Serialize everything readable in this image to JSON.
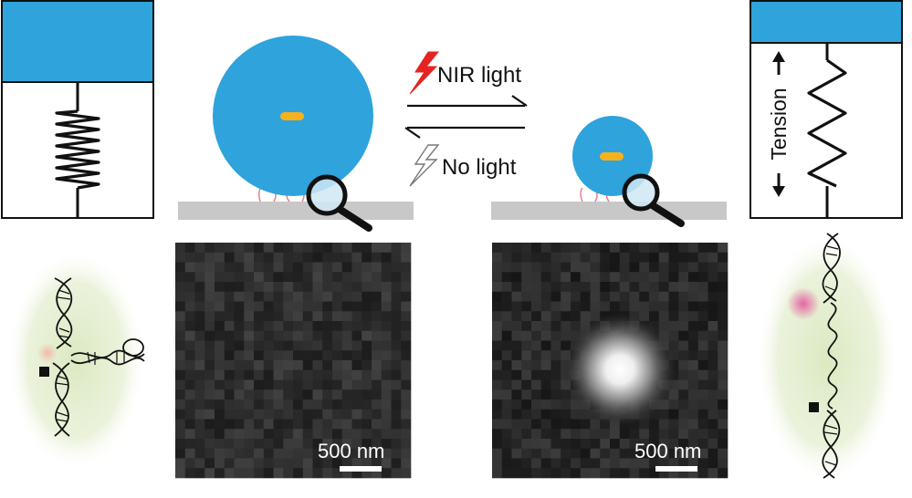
{
  "labels": {
    "nir_light": "NIR light",
    "no_light": "No light",
    "tension": "Tension",
    "scale_left": "500 nm",
    "scale_right": "500 nm"
  },
  "colors": {
    "blue": "#2ea3dc",
    "orange": "#f7b21b",
    "surface": "#c8c8c8",
    "lightning_red": "#e52421",
    "linker_pink": "#e8808c",
    "green_glow": "#d6e8b8",
    "fluor_pink": "#e2569a"
  },
  "icons": {
    "left_top_panel": "compressed-spring-icon",
    "right_top_panel": "stretched-spring-icon",
    "nir_symbol": "lightning-bolt-icon",
    "no_light_symbol": "lightning-outline-icon",
    "zoom_symbol": "magnifier-icon",
    "transition": "reversible-arrows-icon",
    "left_bottom": "folded-dna-hairpin-icon",
    "right_bottom": "unfolded-dna-strand-icon"
  },
  "microscopy": {
    "left_state": "dark-no-spot",
    "right_state": "bright-fluorescent-spot"
  }
}
